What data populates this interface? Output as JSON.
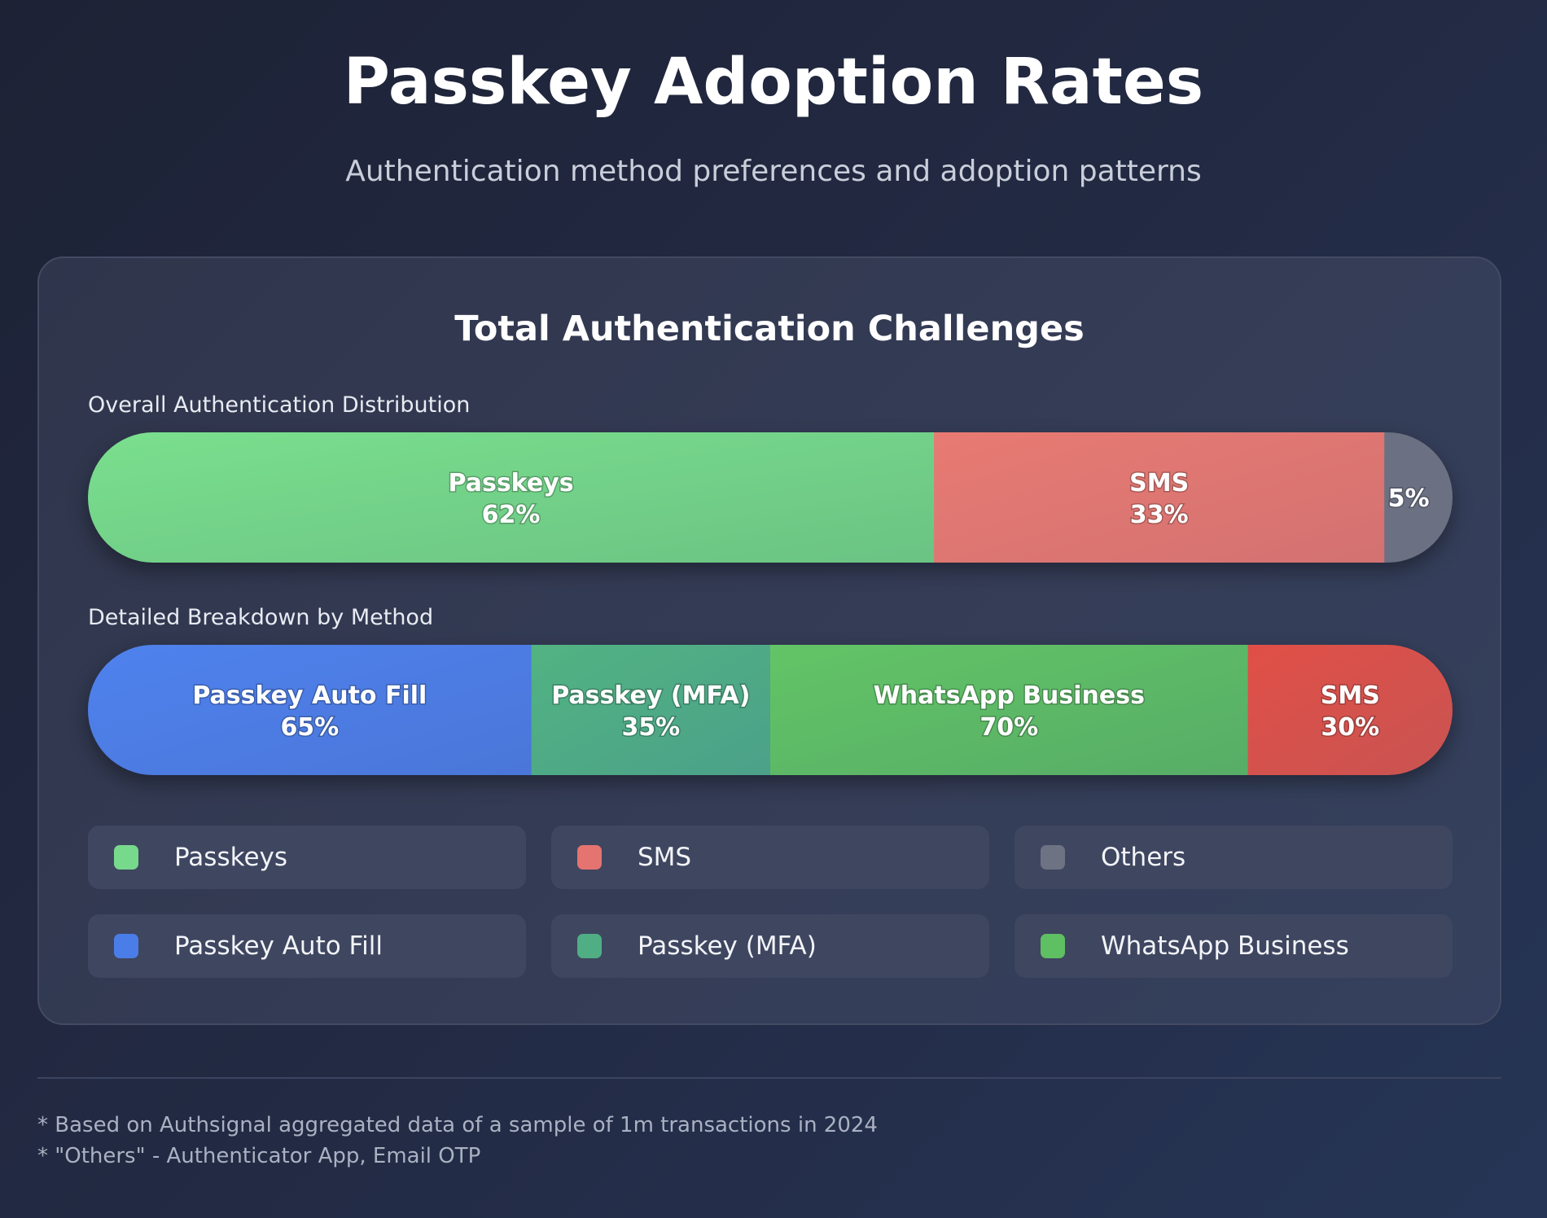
{
  "header": {
    "title": "Passkey Adoption Rates",
    "subtitle": "Authentication method preferences and adoption patterns"
  },
  "card": {
    "title": "Total Authentication Challenges",
    "overall_label": "Overall Authentication Distribution",
    "detailed_label": "Detailed Breakdown by Method"
  },
  "legend": [
    {
      "label": "Passkeys",
      "color": "#77d98c"
    },
    {
      "label": "SMS",
      "color": "#e57470"
    },
    {
      "label": "Others",
      "color": "#6d7383"
    },
    {
      "label": "Passkey Auto Fill",
      "color": "#4b7de8"
    },
    {
      "label": "Passkey (MFA)",
      "color": "#4fae84"
    },
    {
      "label": "WhatsApp Business",
      "color": "#5fbf63"
    }
  ],
  "footnotes": [
    "* Based on Authsignal aggregated data of a sample of 1m transactions in 2024",
    "* \"Others\" - Authenticator App, Email OTP"
  ],
  "chart_data": [
    {
      "type": "bar",
      "stacked": true,
      "orientation": "horizontal",
      "title": "Overall Authentication Distribution",
      "categories": [
        "Passkeys",
        "SMS",
        "Others"
      ],
      "values": [
        62,
        33,
        5
      ],
      "unit": "%",
      "labels": [
        {
          "name": "Passkeys",
          "value": "62%"
        },
        {
          "name": "SMS",
          "value": "33%"
        },
        {
          "name": "",
          "value": "5%"
        }
      ],
      "colors": [
        [
          "#7adf8e",
          "#6bc383"
        ],
        [
          "#e87a72",
          "#d37272"
        ],
        [
          "#6b7182",
          "#6b7182"
        ]
      ]
    },
    {
      "type": "bar",
      "stacked": true,
      "orientation": "horizontal",
      "title": "Detailed Breakdown by Method",
      "categories": [
        "Passkey Auto Fill",
        "Passkey (MFA)",
        "WhatsApp Business",
        "SMS"
      ],
      "values": [
        65,
        35,
        70,
        30
      ],
      "unit": "%",
      "labels": [
        {
          "name": "Passkey Auto Fill",
          "value": "65%"
        },
        {
          "name": "Passkey (MFA)",
          "value": "35%"
        },
        {
          "name": "WhatsApp Business",
          "value": "70%"
        },
        {
          "name": "SMS",
          "value": "30%"
        }
      ],
      "colors": [
        [
          "#4f82ee",
          "#4a76d8"
        ],
        [
          "#52b382",
          "#4ba189"
        ],
        [
          "#62c466",
          "#57ad67"
        ],
        [
          "#e04f47",
          "#c95452"
        ]
      ]
    }
  ]
}
